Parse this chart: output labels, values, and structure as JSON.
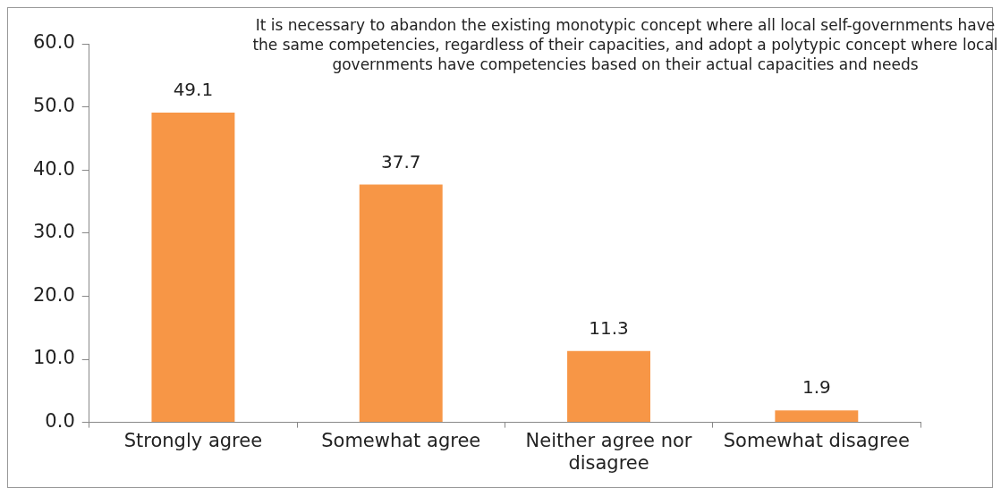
{
  "chart_data": {
    "type": "bar",
    "title": "It is necessary to abandon the existing monotypic concept where all local self-governments have the same competencies, regardless of their capacities, and adopt a polytypic concept where local governments have competencies based on their actual capacities and needs",
    "categories": [
      "Strongly agree",
      "Somewhat agree",
      "Neither agree nor disagree",
      "Somewhat disagree"
    ],
    "values": [
      49.1,
      37.7,
      11.3,
      1.9
    ],
    "color": "#f79646",
    "ylim": [
      0,
      60
    ],
    "yticks": [
      {
        "value": 0,
        "label": "0.0"
      },
      {
        "value": 10,
        "label": "10.0"
      },
      {
        "value": 20,
        "label": "20.0"
      },
      {
        "value": 30,
        "label": "30.0"
      },
      {
        "value": 40,
        "label": "40.0"
      },
      {
        "value": 50,
        "label": "50.0"
      },
      {
        "value": 60,
        "label": "60.0"
      }
    ],
    "grid": false,
    "legend": false,
    "data_labels": true
  }
}
